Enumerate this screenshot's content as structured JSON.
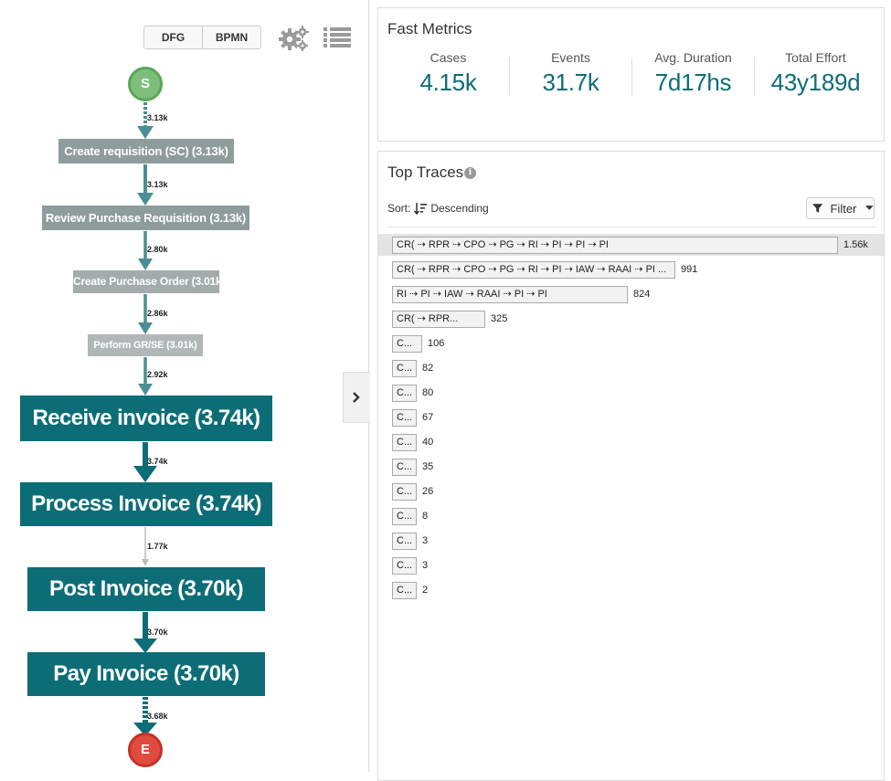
{
  "process_map": {
    "view_toggle": {
      "dfg_label": "DFG",
      "bpmn_label": "BPMN"
    },
    "start_label": "S",
    "end_label": "E",
    "nodes": [
      "Create requisition (SC) (3.13k)",
      "Review Purchase Requisition (3.13k)",
      "Create Purchase Order (3.01k)",
      "Perform GR/SE (3.01k)",
      "Receive invoice (3.74k)",
      "Process Invoice (3.74k)",
      "Post Invoice (3.70k)",
      "Pay Invoice (3.70k)"
    ],
    "edges": [
      "3.13k",
      "3.13k",
      "2.80k",
      "2.86k",
      "2.92k",
      "3.74k",
      "1.77k",
      "3.70k",
      "3.68k"
    ],
    "colors": {
      "teal": "#0c6d76",
      "edge_teal": "#4a8e93",
      "start": "#7cbf7b",
      "end": "#e04b3f"
    }
  },
  "fast_metrics": {
    "title": "Fast Metrics",
    "items": [
      {
        "label": "Cases",
        "value": "4.15k"
      },
      {
        "label": "Events",
        "value": "31.7k"
      },
      {
        "label": "Avg. Duration",
        "value": "7d17hs"
      },
      {
        "label": "Total Effort",
        "value": "43y189d"
      }
    ]
  },
  "top_traces": {
    "title": "Top Traces",
    "sort_label": "Sort:",
    "sort_value": "Descending",
    "filter_label": "Filter",
    "traces": [
      {
        "label": "CR( ⇢ RPR ⇢ CPO ⇢ PG ⇢ RI ⇢ PI ⇢ PI ⇢ PI",
        "count": "1.56k",
        "fraction": 1.0
      },
      {
        "label": "CR( ⇢ RPR ⇢ CPO ⇢ PG ⇢ RI ⇢ PI ⇢ IAW ⇢ RAAI ⇢ PI ...",
        "count": "991",
        "fraction": 0.635
      },
      {
        "label": "RI ⇢ PI ⇢ IAW ⇢ RAAI ⇢ PI ⇢ PI",
        "count": "824",
        "fraction": 0.528
      },
      {
        "label": "CR( ⇢ RPR...",
        "count": "325",
        "fraction": 0.208
      },
      {
        "label": "C...",
        "count": "106",
        "fraction": 0.068
      },
      {
        "label": "C...",
        "count": "82",
        "fraction": 0.053
      },
      {
        "label": "C...",
        "count": "80",
        "fraction": 0.051
      },
      {
        "label": "C...",
        "count": "67",
        "fraction": 0.043
      },
      {
        "label": "C...",
        "count": "40",
        "fraction": 0.026
      },
      {
        "label": "C...",
        "count": "35",
        "fraction": 0.022
      },
      {
        "label": "C...",
        "count": "26",
        "fraction": 0.017
      },
      {
        "label": "C...",
        "count": "8",
        "fraction": 0.005
      },
      {
        "label": "C...",
        "count": "3",
        "fraction": 0.002
      },
      {
        "label": "C...",
        "count": "3",
        "fraction": 0.002
      },
      {
        "label": "C...",
        "count": "2",
        "fraction": 0.001
      }
    ]
  }
}
